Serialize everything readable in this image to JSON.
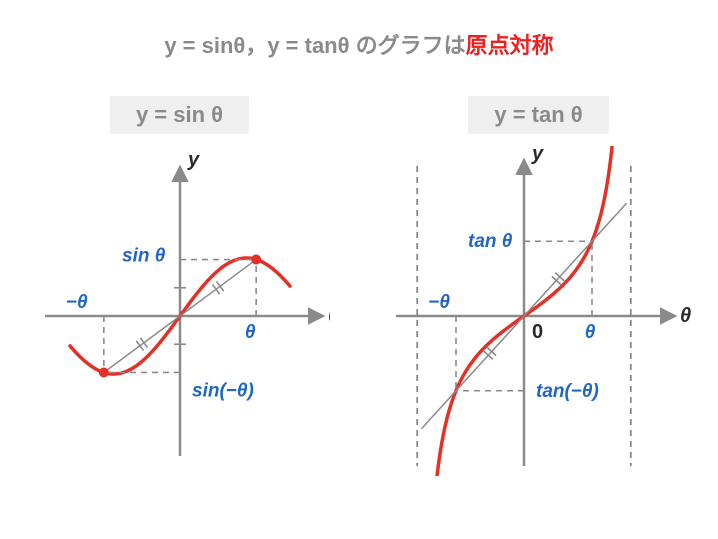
{
  "title": {
    "prefix": "y = sinθ，y = tanθ のグラフは",
    "emphasis": "原点対称",
    "prefix_color": "#8a8a8a",
    "emphasis_color": "#ef1f1f",
    "fontsize": 22
  },
  "colors": {
    "axis": "#8a8a8a",
    "curve": "#e53026",
    "label_black": "#2a2a2a",
    "label_blue": "#1f66c6",
    "subtitle_bg": "#efefef",
    "subtitle_fg": "#8a8a8a",
    "dash": "#8a8a8a",
    "marker": "#e53026",
    "tick_mark": "#8a8a8a"
  },
  "sin": {
    "subtitle": "y = sin θ",
    "y_label": "y",
    "x_label": "θ",
    "pos_theta_label": "θ",
    "neg_theta_label": "−θ",
    "pos_val_label": "sin θ",
    "neg_val_label": "sin(−θ)",
    "type": "line",
    "range": {
      "x": [
        -2.6,
        2.6
      ],
      "theta": 1.8
    },
    "curve_width": 3.5,
    "axis_width": 2.5,
    "dash_pattern": "6,5",
    "marker_radius": 5
  },
  "tan": {
    "subtitle": "y = tan θ",
    "y_label": "y",
    "x_label": "θ",
    "origin_label": "0",
    "pos_theta_label": "θ",
    "neg_theta_label": "−θ",
    "pos_val_label": "tan θ",
    "neg_val_label": "tan(−θ)",
    "type": "line",
    "range": {
      "x": [
        -1.6,
        1.6
      ],
      "theta": 1.0,
      "asymptote": 1.5708
    },
    "curve_width": 3.5,
    "axis_width": 2.5,
    "dash_pattern": "6,5"
  }
}
